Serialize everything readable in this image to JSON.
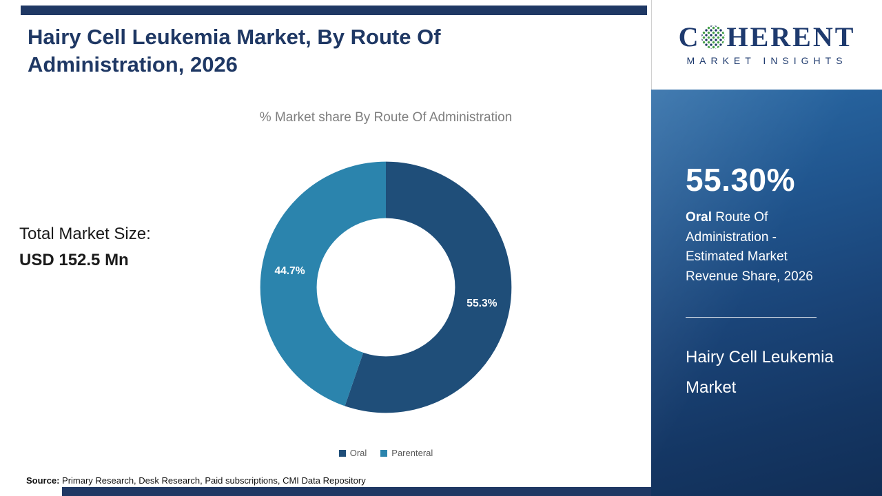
{
  "header": {
    "title": "Hairy Cell Leukemia Market, By Route Of Administration, 2026"
  },
  "main": {
    "chart_subtitle": "% Market share By Route Of Administration",
    "total_market_label": "Total Market Size:",
    "total_market_value": "USD 152.5 Mn",
    "source_label": "Source:",
    "source_text": " Primary Research, Desk Research, Paid subscriptions, CMI Data Repository"
  },
  "chart_data": {
    "type": "pie",
    "subtype": "donut",
    "title": "% Market share By Route Of Administration",
    "categories": [
      "Oral",
      "Parenteral"
    ],
    "values": [
      55.3,
      44.7
    ],
    "labels": [
      "55.3%",
      "44.7%"
    ],
    "colors": [
      "#1f4e79",
      "#2b84ad"
    ],
    "unit": "%",
    "legend_position": "bottom",
    "start_angle_deg": 0,
    "direction": "clockwise"
  },
  "sidebar": {
    "logo": {
      "part1": "C",
      "part2": "HERENT",
      "subtitle": "MARKET INSIGHTS"
    },
    "stat_value": "55.30%",
    "stat_bold": "Oral",
    "stat_rest": " Route Of Administration - Estimated Market Revenue Share, 2026",
    "market_name": "Hairy Cell Leukemia Market"
  },
  "colors": {
    "accent_navy": "#1f3864",
    "panel_top": "#2a6aa6",
    "panel_bottom": "#112e56"
  }
}
